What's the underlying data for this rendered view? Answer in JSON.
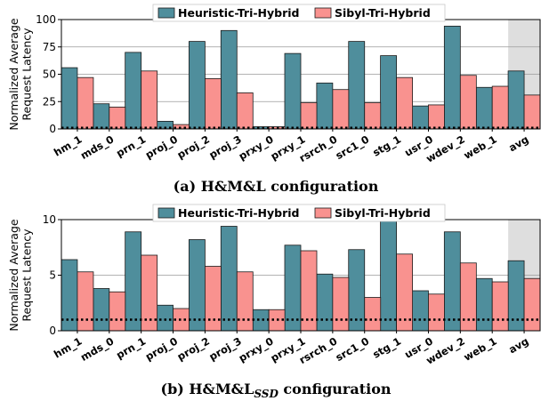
{
  "colors": {
    "heuristic": "#4f8e9c",
    "sibyl": "#f9928f",
    "avg_bg": "#dedede"
  },
  "chart_data": [
    {
      "type": "bar",
      "caption": "(a) H&M&L configuration",
      "ylabel": [
        "Normalized Average",
        "Request Latency"
      ],
      "ylim": [
        0,
        100
      ],
      "yticks": [
        "0",
        "25",
        "50",
        "75",
        "100"
      ],
      "categories": [
        "hm_1",
        "mds_0",
        "prn_1",
        "proj_0",
        "proj_2",
        "proj_3",
        "prxy_0",
        "prxy_1",
        "rsrch_0",
        "src1_0",
        "stg_1",
        "usr_0",
        "wdev_2",
        "web_1",
        "avg"
      ],
      "series": [
        {
          "name": "Heuristic-Tri-Hybrid",
          "values": [
            56,
            23,
            70,
            7,
            80,
            90,
            2,
            69,
            42,
            80,
            67,
            21,
            94,
            38,
            53
          ]
        },
        {
          "name": "Sibyl-Tri-Hybrid",
          "values": [
            47,
            20,
            53,
            4,
            46,
            33,
            2,
            24,
            36,
            24,
            47,
            22,
            49,
            39,
            31
          ]
        }
      ],
      "reference_line": 1,
      "highlight_category": "avg"
    },
    {
      "type": "bar",
      "caption_main": "(b) H&M&L",
      "caption_sub": "SSD",
      "caption_tail": " configuration",
      "ylabel": [
        "Normalized Average",
        "Request Latency"
      ],
      "ylim": [
        0,
        10
      ],
      "yticks": [
        "0",
        "5",
        "10"
      ],
      "categories": [
        "hm_1",
        "mds_0",
        "prn_1",
        "proj_0",
        "proj_2",
        "proj_3",
        "prxy_0",
        "prxy_1",
        "rsrch_0",
        "src1_0",
        "stg_1",
        "usr_0",
        "wdev_2",
        "web_1",
        "avg"
      ],
      "series": [
        {
          "name": "Heuristic-Tri-Hybrid",
          "values": [
            6.4,
            3.8,
            8.9,
            2.3,
            8.2,
            9.4,
            1.9,
            7.7,
            5.1,
            7.3,
            10.5,
            3.6,
            8.9,
            4.7,
            6.3
          ]
        },
        {
          "name": "Sibyl-Tri-Hybrid",
          "values": [
            5.3,
            3.5,
            6.8,
            2.0,
            5.8,
            5.3,
            1.9,
            7.2,
            4.8,
            3.0,
            6.9,
            3.3,
            6.1,
            4.4,
            4.7
          ]
        }
      ],
      "reference_line": 1,
      "highlight_category": "avg"
    }
  ]
}
